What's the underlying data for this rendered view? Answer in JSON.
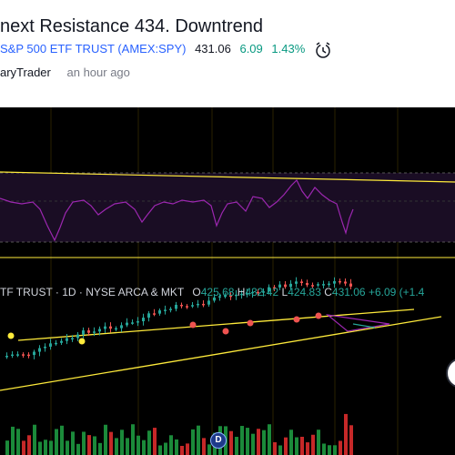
{
  "header": {
    "title": "next Resistance 434. Downtrend",
    "symbol_name": "S&P 500 ETF TRUST (AMEX:SPY)",
    "price": "431.06",
    "change": "6.09",
    "change_pct": "1.43%",
    "author": "aryTrader",
    "time_ago": "an hour ago"
  },
  "legend": {
    "name": "TF TRUST · 1D · NYSE ARCA & MKT",
    "o_label": "O",
    "o_value": "425.68",
    "h_label": "H",
    "h_value": "432.42",
    "l_label": "L",
    "l_value": "424.83",
    "c_label": "C",
    "c_value": "431.06",
    "chg_value": "+6.09",
    "chg_pct": "(+1.4"
  },
  "dividend_badge": "D",
  "colors": {
    "up": "#26a69a",
    "down": "#ef5350",
    "rsi": "#9c27b0",
    "trendline": "#ffeb3b",
    "accent": "#2962ff"
  },
  "icons": {
    "alarm": "alarm-clock-icon",
    "scroll": "scroll-button-icon"
  }
}
